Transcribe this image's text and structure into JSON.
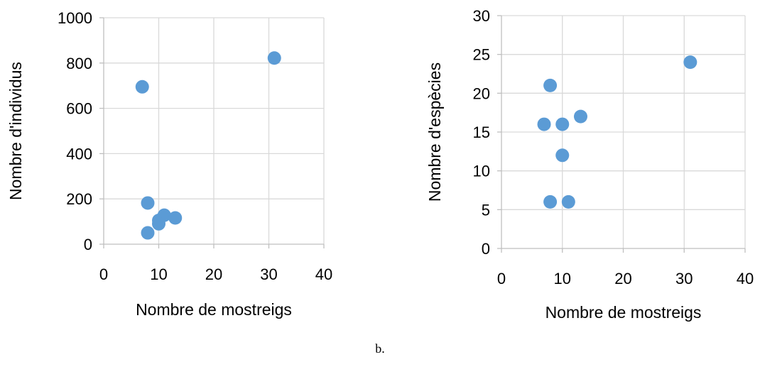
{
  "caption": "b.",
  "chart_data": [
    {
      "type": "scatter",
      "xlabel": "Nombre de mostreigs",
      "ylabel": "Nombre d'individus",
      "xlim": [
        0,
        40
      ],
      "ylim": [
        0,
        1000
      ],
      "xticks": [
        0,
        10,
        20,
        30,
        40
      ],
      "yticks": [
        0,
        200,
        400,
        600,
        800,
        1000
      ],
      "grid": true,
      "color": "#5b9bd5",
      "points": [
        {
          "x": 7,
          "y": 695
        },
        {
          "x": 31,
          "y": 822
        },
        {
          "x": 8,
          "y": 182
        },
        {
          "x": 11,
          "y": 128
        },
        {
          "x": 13,
          "y": 116
        },
        {
          "x": 10,
          "y": 105
        },
        {
          "x": 10,
          "y": 90
        },
        {
          "x": 8,
          "y": 50
        }
      ]
    },
    {
      "type": "scatter",
      "xlabel": "Nombre de mostreigs",
      "ylabel": "Nombre d'espècies",
      "xlim": [
        0,
        40
      ],
      "ylim": [
        0,
        30
      ],
      "xticks": [
        0,
        10,
        20,
        30,
        40
      ],
      "yticks": [
        0,
        5,
        10,
        15,
        20,
        25,
        30
      ],
      "grid": true,
      "color": "#5b9bd5",
      "points": [
        {
          "x": 31,
          "y": 24
        },
        {
          "x": 8,
          "y": 21
        },
        {
          "x": 13,
          "y": 17
        },
        {
          "x": 7,
          "y": 16
        },
        {
          "x": 10,
          "y": 16
        },
        {
          "x": 10,
          "y": 12
        },
        {
          "x": 8,
          "y": 6
        },
        {
          "x": 11,
          "y": 6
        }
      ]
    }
  ]
}
